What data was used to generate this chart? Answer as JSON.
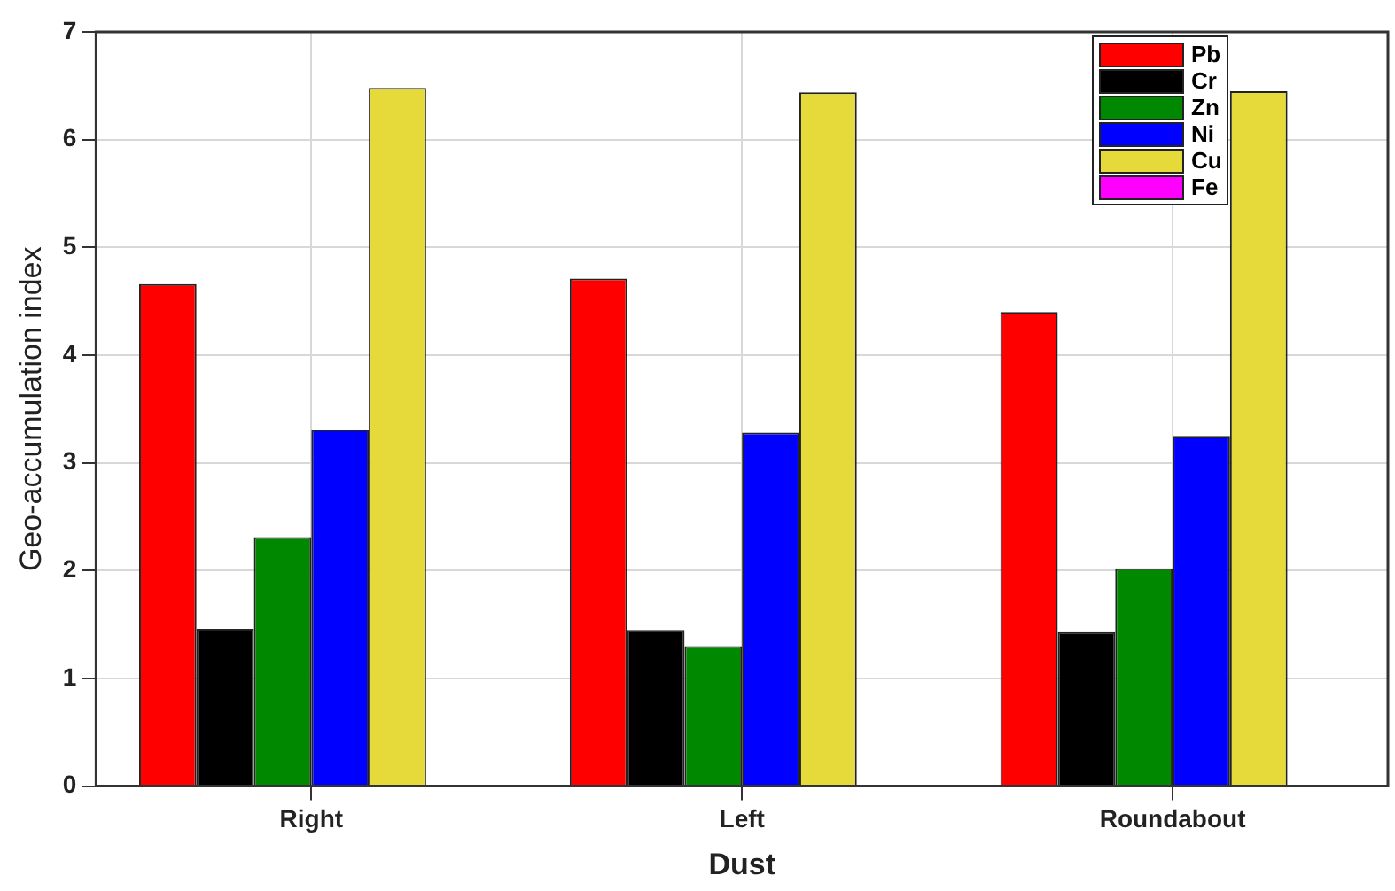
{
  "chart_data": {
    "type": "bar",
    "xlabel": "Dust",
    "ylabel": "Geo-accumulation index",
    "categories": [
      "Right",
      "Left",
      "Roundabout"
    ],
    "series": [
      {
        "name": "Pb",
        "color": "#ff0000",
        "values": [
          4.66,
          4.71,
          4.4
        ]
      },
      {
        "name": "Cr",
        "color": "#000000",
        "values": [
          1.46,
          1.45,
          1.43
        ]
      },
      {
        "name": "Zn",
        "color": "#008800",
        "values": [
          2.31,
          1.3,
          2.02
        ]
      },
      {
        "name": "Ni",
        "color": "#0000ff",
        "values": [
          3.31,
          3.28,
          3.25
        ]
      },
      {
        "name": "Cu",
        "color": "#e6d93a",
        "values": [
          6.48,
          6.44,
          6.45
        ]
      },
      {
        "name": "Fe",
        "color": "#ff00ff",
        "values": [
          null,
          null,
          null
        ]
      }
    ],
    "ylim": [
      0,
      7
    ],
    "yticks": [
      0,
      1,
      2,
      3,
      4,
      5,
      6,
      7
    ],
    "grid": true,
    "legend": "top right"
  }
}
